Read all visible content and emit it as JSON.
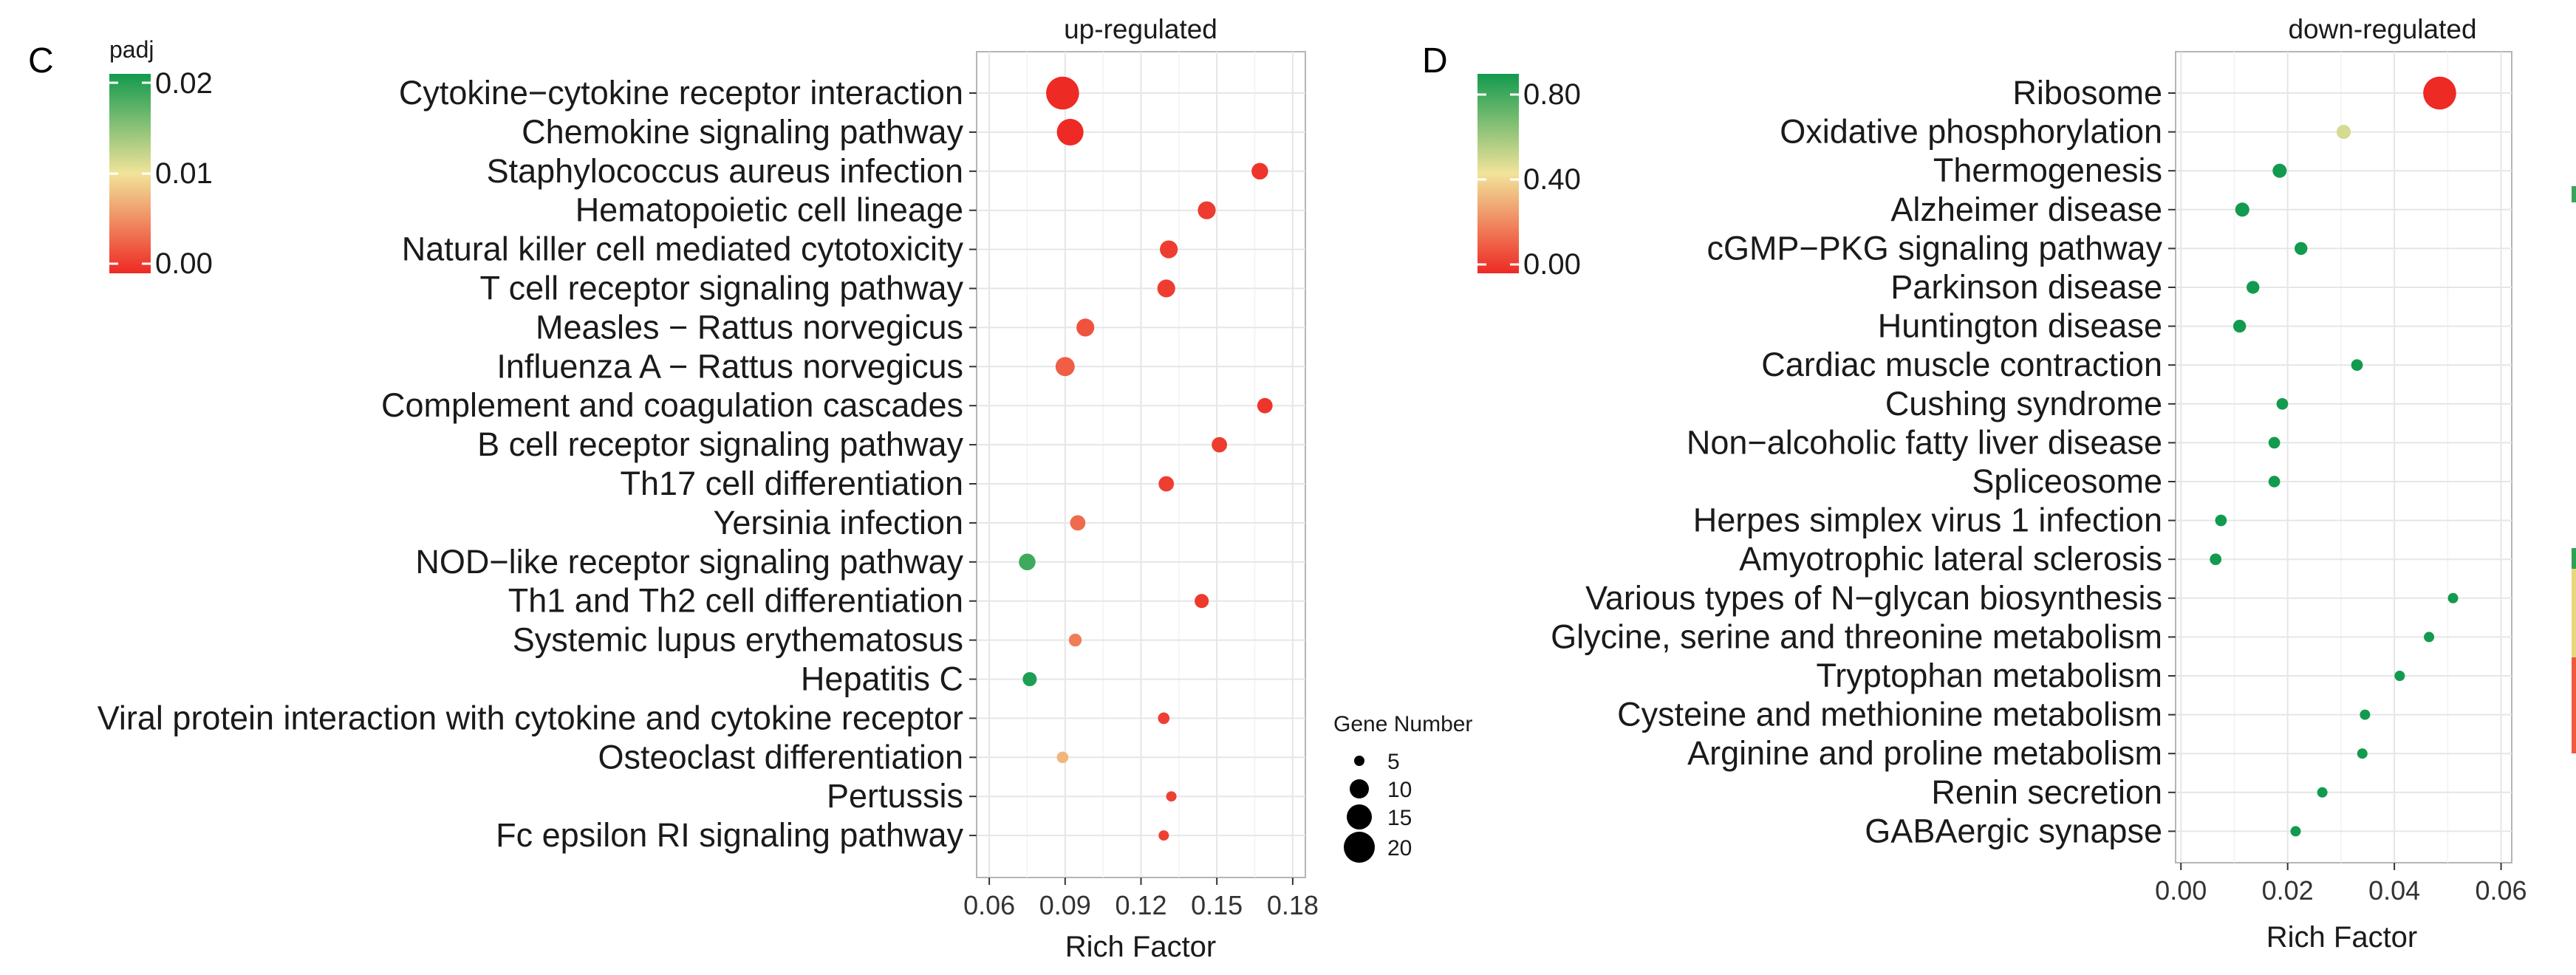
{
  "chart_data": [
    {
      "panel": "C",
      "type": "scatter",
      "title": "up-regulated",
      "xlabel": "Rich Factor",
      "ylabel": "",
      "xlim": [
        0.055,
        0.185
      ],
      "xticks": [
        "0.06",
        "0.09",
        "0.12",
        "0.15",
        "0.18"
      ],
      "grid": true,
      "color_legend": {
        "title": "padj",
        "labels": [
          "0.02",
          "0.01",
          "0.00"
        ],
        "range": [
          0,
          0.02
        ],
        "low_color": "#ee2a24",
        "mid_color": "#f1e49a",
        "high_color": "#129a4e"
      },
      "size_legend": {
        "title": "Gene Number",
        "labels": [
          "5",
          "10",
          "15",
          "20"
        ]
      },
      "points": [
        {
          "term": "Cytokine−cytokine receptor interaction",
          "rich_factor": 0.089,
          "padj": 0.0,
          "gene_number": 22
        },
        {
          "term": "Chemokine signaling pathway",
          "rich_factor": 0.092,
          "padj": 0.0,
          "gene_number": 17
        },
        {
          "term": "Staphylococcus aureus infection",
          "rich_factor": 0.167,
          "padj": 0.0006,
          "gene_number": 9
        },
        {
          "term": "Hematopoietic cell lineage",
          "rich_factor": 0.146,
          "padj": 0.0009,
          "gene_number": 10
        },
        {
          "term": "Natural killer cell mediated cytotoxicity",
          "rich_factor": 0.131,
          "padj": 0.001,
          "gene_number": 10
        },
        {
          "term": "T cell receptor signaling pathway",
          "rich_factor": 0.13,
          "padj": 0.001,
          "gene_number": 10
        },
        {
          "term": "Measles − Rattus norvegicus",
          "rich_factor": 0.098,
          "padj": 0.0022,
          "gene_number": 10
        },
        {
          "term": "Influenza A − Rattus norvegicus",
          "rich_factor": 0.09,
          "padj": 0.0028,
          "gene_number": 11
        },
        {
          "term": "Complement and coagulation cascades",
          "rich_factor": 0.169,
          "padj": 0.0006,
          "gene_number": 8
        },
        {
          "term": "B cell receptor signaling pathway",
          "rich_factor": 0.151,
          "padj": 0.0009,
          "gene_number": 8
        },
        {
          "term": "Th17 cell differentiation",
          "rich_factor": 0.13,
          "padj": 0.0011,
          "gene_number": 8
        },
        {
          "term": "Yersinia infection",
          "rich_factor": 0.095,
          "padj": 0.0035,
          "gene_number": 8
        },
        {
          "term": "NOD−like receptor signaling pathway",
          "rich_factor": 0.075,
          "padj": 0.018,
          "gene_number": 9
        },
        {
          "term": "Th1 and Th2 cell differentiation",
          "rich_factor": 0.144,
          "padj": 0.0008,
          "gene_number": 7
        },
        {
          "term": "Systemic lupus erythematosus",
          "rich_factor": 0.094,
          "padj": 0.0045,
          "gene_number": 6
        },
        {
          "term": "Hepatitis C",
          "rich_factor": 0.076,
          "padj": 0.0195,
          "gene_number": 7
        },
        {
          "term": "Viral protein interaction with cytokine and cytokine receptor",
          "rich_factor": 0.129,
          "padj": 0.0012,
          "gene_number": 5
        },
        {
          "term": "Osteoclast differentiation",
          "rich_factor": 0.089,
          "padj": 0.0075,
          "gene_number": 5
        },
        {
          "term": "Pertussis",
          "rich_factor": 0.132,
          "padj": 0.0012,
          "gene_number": 4
        },
        {
          "term": "Fc epsilon RI signaling pathway",
          "rich_factor": 0.129,
          "padj": 0.0012,
          "gene_number": 4
        }
      ]
    },
    {
      "panel": "D",
      "type": "scatter",
      "title": "down-regulated",
      "xlabel": "Rich Factor",
      "ylabel": "",
      "xlim": [
        -0.001,
        0.062
      ],
      "xticks": [
        "0.00",
        "0.02",
        "0.04",
        "0.06"
      ],
      "grid": true,
      "color_legend": {
        "title": "padj",
        "labels": [
          "0.80",
          "0.40",
          "0.00"
        ],
        "range": [
          0,
          0.8
        ],
        "low_color": "#ee2a24",
        "mid_color": "#f1e49a",
        "high_color": "#129a4e"
      },
      "points": [
        {
          "term": "Ribosome",
          "rich_factor": 0.0485,
          "padj": 0.0,
          "gene_number": 22
        },
        {
          "term": "Oxidative phosphorylation",
          "rich_factor": 0.0305,
          "padj": 0.45,
          "gene_number": 7
        },
        {
          "term": "Thermogenesis",
          "rich_factor": 0.0185,
          "padj": 0.8,
          "gene_number": 7
        },
        {
          "term": "Alzheimer disease",
          "rich_factor": 0.0115,
          "padj": 0.8,
          "gene_number": 7
        },
        {
          "term": "cGMP−PKG signaling pathway",
          "rich_factor": 0.0225,
          "padj": 0.8,
          "gene_number": 6
        },
        {
          "term": "Parkinson disease",
          "rich_factor": 0.0135,
          "padj": 0.8,
          "gene_number": 6
        },
        {
          "term": "Huntington disease",
          "rich_factor": 0.011,
          "padj": 0.8,
          "gene_number": 6
        },
        {
          "term": "Cardiac muscle contraction",
          "rich_factor": 0.033,
          "padj": 0.8,
          "gene_number": 5
        },
        {
          "term": "Cushing syndrome",
          "rich_factor": 0.019,
          "padj": 0.8,
          "gene_number": 5
        },
        {
          "term": "Non−alcoholic fatty liver disease",
          "rich_factor": 0.0175,
          "padj": 0.8,
          "gene_number": 5
        },
        {
          "term": "Spliceosome",
          "rich_factor": 0.0175,
          "padj": 0.8,
          "gene_number": 5
        },
        {
          "term": "Herpes simplex virus 1 infection",
          "rich_factor": 0.0075,
          "padj": 0.8,
          "gene_number": 5
        },
        {
          "term": "Amyotrophic lateral sclerosis",
          "rich_factor": 0.0065,
          "padj": 0.8,
          "gene_number": 5
        },
        {
          "term": "Various types of N−glycan biosynthesis",
          "rich_factor": 0.051,
          "padj": 0.8,
          "gene_number": 4
        },
        {
          "term": "Glycine, serine and threonine metabolism",
          "rich_factor": 0.0465,
          "padj": 0.8,
          "gene_number": 4
        },
        {
          "term": "Tryptophan metabolism",
          "rich_factor": 0.041,
          "padj": 0.8,
          "gene_number": 4
        },
        {
          "term": "Cysteine and methionine metabolism",
          "rich_factor": 0.0345,
          "padj": 0.8,
          "gene_number": 4
        },
        {
          "term": "Arginine and proline metabolism",
          "rich_factor": 0.034,
          "padj": 0.8,
          "gene_number": 4
        },
        {
          "term": "Renin secretion",
          "rich_factor": 0.0265,
          "padj": 0.8,
          "gene_number": 4
        },
        {
          "term": "GABAergic synapse",
          "rich_factor": 0.0215,
          "padj": 0.8,
          "gene_number": 4
        }
      ]
    }
  ]
}
